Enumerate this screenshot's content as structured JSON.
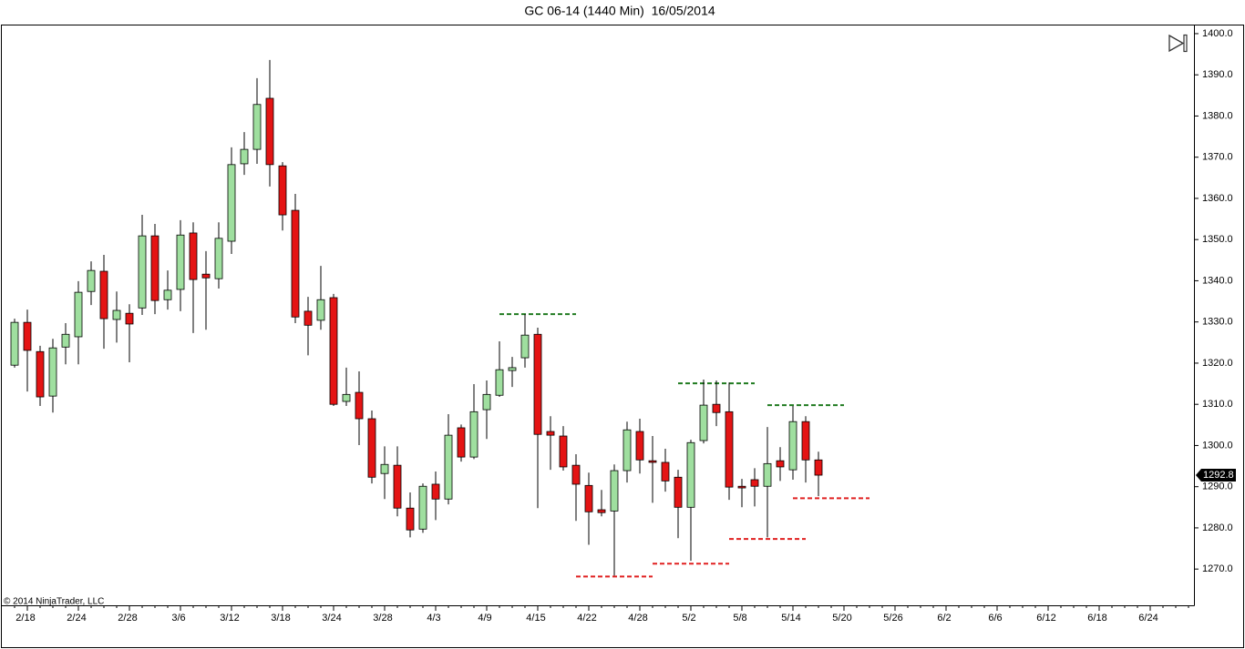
{
  "chart_data": {
    "type": "candlestick",
    "title": "GC 06-14 (1440 Min)  16/05/2014",
    "copyright": "© 2014 NinjaTrader, LLC",
    "categories": [
      null,
      "2/18",
      null,
      null,
      null,
      "2/24",
      null,
      null,
      null,
      "2/28",
      null,
      null,
      null,
      "3/6",
      null,
      null,
      null,
      "3/12",
      null,
      null,
      null,
      "3/18",
      null,
      null,
      null,
      "3/24",
      null,
      null,
      null,
      "3/28",
      null,
      null,
      null,
      "4/3",
      null,
      null,
      null,
      "4/9",
      null,
      null,
      null,
      "4/15",
      null,
      null,
      null,
      "4/22",
      null,
      null,
      null,
      "4/28",
      null,
      null,
      null,
      "5/2",
      null,
      null,
      null,
      "5/8",
      null,
      null,
      null,
      "5/14",
      null,
      null,
      null,
      "5/20",
      null,
      null,
      null,
      "5/26",
      null,
      null,
      null,
      "6/2",
      null,
      null,
      null,
      "6/6",
      null,
      null,
      null,
      "6/12",
      null,
      null,
      null,
      "6/18",
      null,
      null,
      null,
      "6/24",
      null,
      null,
      null
    ],
    "open": [
      1319.5,
      1329.9,
      1322.8,
      1312.0,
      1323.9,
      1326.4,
      1337.4,
      1342.3,
      1330.6,
      1332.1,
      1333.4,
      1350.9,
      1335.4,
      1337.9,
      1351.6,
      1341.6,
      1340.5,
      1349.6,
      1368.4,
      1371.9,
      1384.3,
      1367.9,
      1357.1,
      1332.6,
      1330.4,
      1335.9,
      1310.7,
      1312.9,
      1306.5,
      1293.2,
      1295.2,
      1284.8,
      1279.7,
      1290.6,
      1287.0,
      1304.3,
      1297.2,
      1308.7,
      1312.2,
      1318.2,
      1321.3,
      1327.0,
      1303.4,
      1302.3,
      1295.2,
      1290.3,
      1284.4,
      1284.1,
      1293.9,
      1303.4,
      1296.3,
      1295.9,
      1292.3,
      1285.0,
      1301.2,
      1310.0,
      1308.2,
      1290.1,
      1291.7,
      1290.1,
      1296.3,
      1294.1,
      1305.8,
      1296.5,
      null,
      null,
      null,
      null,
      null,
      null,
      null,
      null,
      null,
      null,
      null,
      null,
      null,
      null,
      null,
      null,
      null,
      null,
      null,
      null,
      null,
      null,
      null,
      null,
      null,
      null,
      null,
      null,
      null
    ],
    "high": [
      1330.8,
      1333.0,
      1324.2,
      1325.9,
      1329.7,
      1339.9,
      1344.7,
      1346.3,
      1337.4,
      1334.3,
      1356.0,
      1353.8,
      1342.5,
      1354.7,
      1354.2,
      1347.2,
      1354.2,
      1372.4,
      1376.1,
      1389.2,
      1393.6,
      1368.8,
      1361.1,
      1336.1,
      1343.6,
      1336.8,
      1318.9,
      1318.0,
      1308.5,
      1299.8,
      1299.8,
      1288.6,
      1290.8,
      1293.7,
      1307.6,
      1305.1,
      1314.9,
      1315.8,
      1325.3,
      1321.5,
      1331.9,
      1328.6,
      1307.1,
      1304.7,
      1297.9,
      1293.4,
      1289.2,
      1295.4,
      1305.8,
      1306.5,
      1302.3,
      1299.2,
      1294.1,
      1301.4,
      1316.0,
      1315.8,
      1315.3,
      1291.9,
      1294.5,
      1304.5,
      1299.6,
      1309.6,
      1307.1,
      1298.5,
      null,
      null,
      null,
      null,
      null,
      null,
      null,
      null,
      null,
      null,
      null,
      null,
      null,
      null,
      null,
      null,
      null,
      null,
      null,
      null,
      null,
      null,
      null,
      null,
      null,
      null,
      null,
      null,
      null
    ],
    "low": [
      1318.9,
      1313.1,
      1309.6,
      1308.0,
      1319.7,
      1319.7,
      1334.1,
      1323.5,
      1325.0,
      1320.2,
      1331.7,
      1331.9,
      1333.0,
      1332.6,
      1327.3,
      1328.1,
      1338.1,
      1346.5,
      1365.7,
      1368.4,
      1362.9,
      1352.2,
      1329.7,
      1321.9,
      1328.1,
      1309.6,
      1309.6,
      1300.1,
      1290.8,
      1287.0,
      1282.8,
      1277.7,
      1278.8,
      1281.9,
      1285.7,
      1296.1,
      1296.7,
      1301.6,
      1311.8,
      1314.2,
      1318.9,
      1284.8,
      1294.1,
      1293.9,
      1281.7,
      1275.9,
      1282.8,
      1268.4,
      1291.0,
      1293.2,
      1286.1,
      1288.8,
      1277.5,
      1272.0,
      1300.5,
      1304.7,
      1286.8,
      1285.0,
      1285.2,
      1277.7,
      1291.4,
      1291.7,
      1291.0,
      1287.7,
      null,
      null,
      null,
      null,
      null,
      null,
      null,
      null,
      null,
      null,
      null,
      null,
      null,
      null,
      null,
      null,
      null,
      null,
      null,
      null,
      null,
      null,
      null,
      null,
      null,
      null,
      null,
      null,
      null
    ],
    "close": [
      1329.9,
      1323.1,
      1311.8,
      1323.7,
      1327.0,
      1337.2,
      1342.5,
      1330.8,
      1332.8,
      1329.5,
      1350.9,
      1335.2,
      1337.7,
      1351.1,
      1340.3,
      1340.7,
      1350.3,
      1368.2,
      1371.9,
      1382.8,
      1368.2,
      1356.0,
      1331.2,
      1329.2,
      1335.4,
      1310.0,
      1312.4,
      1306.5,
      1292.3,
      1295.4,
      1284.8,
      1279.5,
      1290.1,
      1287.0,
      1302.5,
      1297.2,
      1308.2,
      1312.4,
      1318.4,
      1318.9,
      1326.8,
      1302.7,
      1302.5,
      1294.8,
      1290.6,
      1283.9,
      1283.7,
      1293.9,
      1303.8,
      1296.5,
      1295.9,
      1291.4,
      1285.0,
      1300.7,
      1309.8,
      1308.0,
      1289.9,
      1289.7,
      1290.1,
      1295.6,
      1294.8,
      1305.8,
      1296.5,
      1292.8,
      null,
      null,
      null,
      null,
      null,
      null,
      null,
      null,
      null,
      null,
      null,
      null,
      null,
      null,
      null,
      null,
      null,
      null,
      null,
      null,
      null,
      null,
      null,
      null,
      null,
      null,
      null,
      null,
      null
    ],
    "up_color": "#9fdf9f",
    "down_color": "#e41414",
    "levels": [
      {
        "value": 1331.9,
        "color": "#1f7a1f"
      },
      {
        "value": 1315.1,
        "color": "#1f7a1f"
      },
      {
        "value": 1309.8,
        "color": "#1f7a1f"
      },
      {
        "value": 1268.2,
        "color": "#e02020"
      },
      {
        "value": 1271.3,
        "color": "#e02020"
      },
      {
        "value": 1277.3,
        "color": "#e02020"
      },
      {
        "value": 1287.2,
        "color": "#e02020"
      }
    ],
    "ylim": [
      1261.2,
      1402.2
    ],
    "yticks": [
      {
        "value": 1270,
        "label": "1270.0"
      },
      {
        "value": 1280,
        "label": "1280.0"
      },
      {
        "value": 1290,
        "label": "1290.0"
      },
      {
        "value": 1300,
        "label": "1300.0"
      },
      {
        "value": 1310,
        "label": "1310.0"
      },
      {
        "value": 1320,
        "label": "1320.0"
      },
      {
        "value": 1330,
        "label": "1330.0"
      },
      {
        "value": 1340,
        "label": "1340.0"
      },
      {
        "value": 1350,
        "label": "1350.0"
      },
      {
        "value": 1360,
        "label": "1360.0"
      },
      {
        "value": 1370,
        "label": "1370.0"
      },
      {
        "value": 1380,
        "label": "1380.0"
      },
      {
        "value": 1390,
        "label": "1390.0"
      },
      {
        "value": 1400,
        "label": "1400.0"
      }
    ],
    "grid": false
  }
}
